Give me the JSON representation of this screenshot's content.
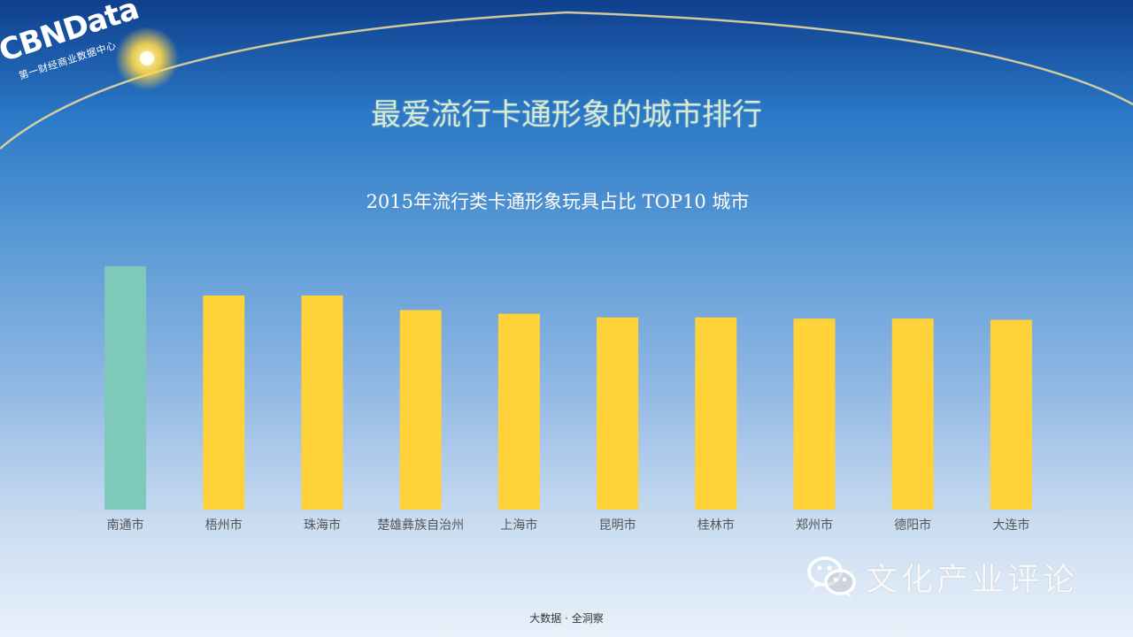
{
  "logo": {
    "name": "CBNData",
    "subtitle": "第一财经商业数据中心"
  },
  "slide_title": "最爱流行卡通形象的城市排行",
  "footer": "大数据 · 全洞察",
  "watermark": {
    "text": "文化产业评论",
    "icon": "wechat-icon"
  },
  "colors": {
    "highlight": "#7ec9b9",
    "bar": "#ffd23a",
    "axis": "#c4d6ea",
    "tick_label": "#555555"
  },
  "chart_data": {
    "type": "bar",
    "title": "2015年流行类卡通形象玩具占比 TOP10 城市",
    "xlabel": "",
    "ylabel": "",
    "categories": [
      "南通市",
      "梧州市",
      "珠海市",
      "楚雄彝族自治州",
      "上海市",
      "昆明市",
      "桂林市",
      "郑州市",
      "德阳市",
      "大连市"
    ],
    "values": [
      100,
      88,
      88,
      82,
      80.5,
      79,
      79,
      78.5,
      78.5,
      78
    ],
    "ylim": [
      0,
      100
    ],
    "grid": false,
    "legend": "none",
    "highlight_index": 0
  }
}
